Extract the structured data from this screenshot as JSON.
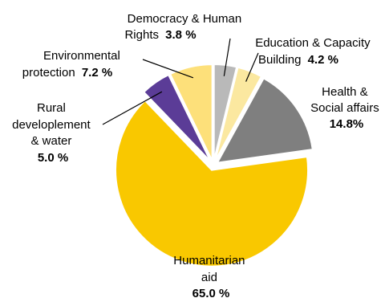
{
  "chart_data": {
    "type": "pie",
    "slices": [
      {
        "key": "democracy",
        "label_lines": [
          "Democracy & Human",
          "Rights"
        ],
        "value_text": "3.8 %",
        "value": 3.8,
        "color": "#b9b9b9"
      },
      {
        "key": "education",
        "label_lines": [
          "Education & Capacity",
          "Building"
        ],
        "value_text": "4.2 %",
        "value": 4.2,
        "color": "#fbe8a0"
      },
      {
        "key": "health",
        "label_lines": [
          "Health &",
          "Social affairs"
        ],
        "value_text": "14.8%",
        "value": 14.8,
        "color": "#7f7f7f"
      },
      {
        "key": "humanitarian",
        "label_lines": [
          "Humanitarian",
          "aid"
        ],
        "value_text": "65.0 %",
        "value": 65.0,
        "color": "#f9c800"
      },
      {
        "key": "rural",
        "label_lines": [
          "Rural",
          "developlement",
          "& water"
        ],
        "value_text": "5.0 %",
        "value": 5.0,
        "color": "#5b3c97"
      },
      {
        "key": "environmental",
        "label_lines": [
          "Environmental",
          "protection"
        ],
        "value_text": "7.2 %",
        "value": 7.2,
        "color": "#fde07a"
      }
    ]
  }
}
